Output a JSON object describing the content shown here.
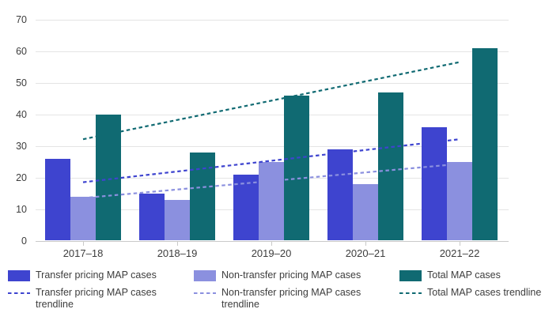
{
  "chart_data": {
    "type": "bar",
    "title": "",
    "xlabel": "",
    "ylabel": "",
    "categories": [
      "2017–18",
      "2018–19",
      "2019–20",
      "2020–21",
      "2021–22"
    ],
    "series": [
      {
        "name": "Transfer pricing MAP cases",
        "color": "#3E44CF",
        "values": [
          26,
          15,
          21,
          29,
          36
        ]
      },
      {
        "name": "Non-transfer pricing MAP cases",
        "color": "#8B90DF",
        "values": [
          14,
          13,
          25,
          18,
          25
        ]
      },
      {
        "name": "Total MAP cases",
        "color": "#106A72",
        "values": [
          40,
          28,
          46,
          47,
          61
        ]
      }
    ],
    "trendlines": [
      {
        "name": "Transfer pricing MAP cases trendline",
        "color": "#3E44CF",
        "endpoint_values": [
          18.6,
          32.2
        ]
      },
      {
        "name": "Non-transfer pricing MAP cases trendline",
        "color": "#8B90DF",
        "endpoint_values": [
          13.6,
          24.4
        ]
      },
      {
        "name": "Total MAP cases trendline",
        "color": "#106A72",
        "endpoint_values": [
          32.2,
          56.6
        ]
      }
    ],
    "ylim": [
      0,
      70
    ],
    "ytick_step": 10,
    "yticks": [
      0,
      10,
      20,
      30,
      40,
      50,
      60,
      70
    ],
    "grid": true,
    "legend_position": "bottom"
  },
  "colors": {
    "gridline": "#e4e4e4",
    "axis_line": "#c9c9c9",
    "text": "#3d3d3d",
    "background": "#ffffff"
  }
}
